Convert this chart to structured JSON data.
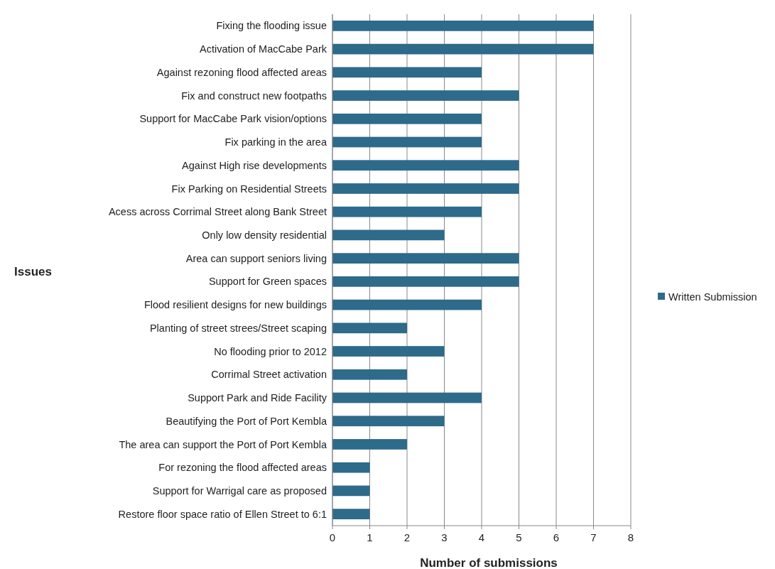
{
  "chart_data": {
    "type": "bar",
    "orientation": "horizontal",
    "xlabel": "Number of submissions",
    "ylabel": "Issues",
    "categories": [
      "Fixing the flooding issue",
      "Activation of MacCabe Park",
      "Against rezoning flood affected areas",
      "Fix and construct new footpaths",
      "Support for MacCabe Park vision/options",
      "Fix parking in the area",
      "Against High rise developments",
      "Fix Parking on Residential Streets",
      "Acess across Corrimal Street along Bank Street",
      "Only low density residential",
      "Area can support seniors living",
      "Support for Green spaces",
      "Flood resilient designs for new buildings",
      "Planting of street strees/Street scaping",
      "No flooding prior to 2012",
      "Corrimal Street activation",
      "Support Park and Ride Facility",
      "Beautifying the Port of Port Kembla",
      "The area can support the Port of Port Kembla",
      "For rezoning the flood affected areas",
      "Support for Warrigal care as proposed",
      "Restore floor space ratio of Ellen Street to 6:1"
    ],
    "series": [
      {
        "name": "Written Submission",
        "color": "#2e6a8a",
        "values": [
          7,
          7,
          4,
          5,
          4,
          4,
          5,
          5,
          4,
          3,
          5,
          5,
          4,
          2,
          3,
          2,
          4,
          3,
          2,
          1,
          1,
          1
        ]
      }
    ],
    "xlim": [
      0,
      8
    ],
    "xticks": [
      0,
      1,
      2,
      3,
      4,
      5,
      6,
      7,
      8
    ],
    "grid": "x",
    "legend": "right"
  }
}
